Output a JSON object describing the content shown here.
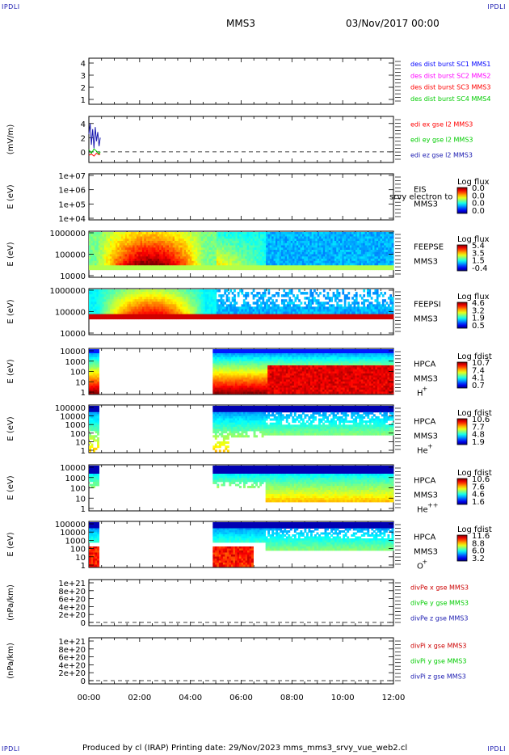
{
  "corners": {
    "tl": "IPDLI",
    "tr": "IPDLI",
    "bl": "IPDLI",
    "br": "IPDLI"
  },
  "header": {
    "spacecraft": "MMS3",
    "date": "03/Nov/2017 00:00"
  },
  "footer": {
    "text": "Produced by cl (IRAP)   Printing date: 29/Nov/2023   mms_mms3_srvy_vue_web2.cl"
  },
  "colors": {
    "blue": "#0000ff",
    "magenta": "#ff00ff",
    "red": "#ff0000",
    "green": "#00cc00",
    "darkblue": "#1a1ab0",
    "darkred": "#cc0000"
  },
  "chart_data": [
    {
      "type": "line",
      "panel": "des_dist_burst",
      "ylabel": "",
      "ylim": [
        0.5,
        4.5
      ],
      "yticks": [
        "4",
        "3",
        "2",
        "1"
      ],
      "legend": [
        {
          "name": "des dist burst SC1 MMS1",
          "color": "#0000ff"
        },
        {
          "name": "des dist burst SC2 MMS2",
          "color": "#ff00ff"
        },
        {
          "name": "des dist burst SC3 MMS3",
          "color": "#ff0000"
        },
        {
          "name": "des dist burst SC4 MMS4",
          "color": "#00cc00"
        }
      ]
    },
    {
      "type": "line",
      "panel": "edi_e",
      "ylabel": "(mV/m)",
      "ylim": [
        -1.5,
        5
      ],
      "yticks": [
        "4",
        "2",
        "0"
      ],
      "series": [
        {
          "name": "edi ex gse l2 MMS3",
          "color": "#ff0000",
          "x": [
            0.0,
            0.1,
            0.2,
            0.3,
            0.4,
            0.45
          ],
          "values": [
            -0.5,
            -0.3,
            -0.6,
            -0.2,
            -0.4,
            -0.3
          ]
        },
        {
          "name": "edi ey gse l2 MMS3",
          "color": "#00cc00",
          "x": [
            0.0,
            0.1,
            0.2,
            0.3,
            0.4,
            0.45
          ],
          "values": [
            0.3,
            -0.2,
            0.4,
            0.1,
            -0.3,
            0.0
          ]
        },
        {
          "name": "edi ez gse l2 MMS3",
          "color": "#1a1ab0",
          "x": [
            0.0,
            0.05,
            0.1,
            0.15,
            0.2,
            0.25,
            0.3,
            0.35,
            0.4,
            0.45
          ],
          "values": [
            2.5,
            4.0,
            1.0,
            3.2,
            0.5,
            3.5,
            1.5,
            2.8,
            0.8,
            2.0
          ]
        }
      ]
    },
    {
      "type": "heatmap",
      "panel": "eis",
      "ylabel": "E (eV)",
      "yticks": [
        "1e+07",
        "1e+06",
        "1e+05",
        "1e+04"
      ],
      "name": "EIS",
      "sub": "MMS3",
      "overlay": "srvy electron to",
      "cbar_title": "Log flux",
      "cbar_ticks": [
        "0.0",
        "0.0",
        "0.0",
        "0.0"
      ]
    },
    {
      "type": "heatmap",
      "panel": "feeps_e",
      "ylabel": "E (eV)",
      "yticks": [
        "1000000",
        "100000",
        "10000"
      ],
      "name": "FEEPSE",
      "sub": "MMS3",
      "cbar_title": "Log flux",
      "cbar_ticks": [
        "5.4",
        "3.5",
        "1.5",
        "-0.4"
      ]
    },
    {
      "type": "heatmap",
      "panel": "feeps_i",
      "ylabel": "E (eV)",
      "yticks": [
        "1000000",
        "100000",
        "10000"
      ],
      "name": "FEEPSI",
      "sub": "MMS3",
      "cbar_title": "Log flux",
      "cbar_ticks": [
        "4.6",
        "3.2",
        "1.9",
        "0.5"
      ]
    },
    {
      "type": "heatmap",
      "panel": "hpca_h",
      "ylabel": "E (eV)",
      "yticks": [
        "10000",
        "1000",
        "100",
        "10",
        "1"
      ],
      "name": "HPCA",
      "sub": "MMS3",
      "species": "H",
      "charge": "+",
      "cbar_title": "Log fdist",
      "cbar_ticks": [
        "10.7",
        "7.4",
        "4.1",
        "0.7"
      ]
    },
    {
      "type": "heatmap",
      "panel": "hpca_he",
      "ylabel": "E (eV)",
      "yticks": [
        "100000",
        "10000",
        "1000",
        "100",
        "10",
        "1"
      ],
      "name": "HPCA",
      "sub": "MMS3",
      "species": "He",
      "charge": "+",
      "cbar_title": "Log fdist",
      "cbar_ticks": [
        "10.6",
        "7.7",
        "4.8",
        "1.9"
      ]
    },
    {
      "type": "heatmap",
      "panel": "hpca_hepp",
      "ylabel": "E (eV)",
      "yticks": [
        "10000",
        "1000",
        "100",
        "10",
        "1"
      ],
      "name": "HPCA",
      "sub": "MMS3",
      "species": "He",
      "charge": "++",
      "cbar_title": "Log fdist",
      "cbar_ticks": [
        "10.6",
        "7.6",
        "4.6",
        "1.6"
      ]
    },
    {
      "type": "heatmap",
      "panel": "hpca_o",
      "ylabel": "E (eV)",
      "yticks": [
        "100000",
        "10000",
        "1000",
        "100",
        "10",
        "1"
      ],
      "name": "HPCA",
      "sub": "MMS3",
      "species": "O",
      "charge": "+",
      "cbar_title": "Log fdist",
      "cbar_ticks": [
        "11.6",
        "8.8",
        "6.0",
        "3.2"
      ]
    },
    {
      "type": "line",
      "panel": "divpe",
      "ylabel": "(nPa/km)",
      "yticks": [
        "1e+21",
        "8e+20",
        "6e+20",
        "4e+20",
        "2e+20",
        "0"
      ],
      "legend": [
        {
          "name": "divPe x gse MMS3",
          "color": "#cc0000"
        },
        {
          "name": "divPe y gse MMS3",
          "color": "#00cc00"
        },
        {
          "name": "divPe z gse MMS3",
          "color": "#1a1ab0"
        }
      ]
    },
    {
      "type": "line",
      "panel": "divpi",
      "ylabel": "(nPa/km)",
      "yticks": [
        "1e+21",
        "8e+20",
        "6e+20",
        "4e+20",
        "2e+20",
        "0"
      ],
      "legend": [
        {
          "name": "divPi x gse MMS3",
          "color": "#cc0000"
        },
        {
          "name": "divPi y gse MMS3",
          "color": "#00cc00"
        },
        {
          "name": "divPi z gse MMS3",
          "color": "#1a1ab0"
        }
      ]
    }
  ],
  "x_axis": {
    "xlim": [
      0,
      12
    ],
    "tick_values": [
      0,
      2,
      4,
      6,
      8,
      10,
      12
    ],
    "tick_labels": [
      "00:00",
      "02:00",
      "04:00",
      "06:00",
      "08:00",
      "10:00",
      "12:00"
    ]
  }
}
